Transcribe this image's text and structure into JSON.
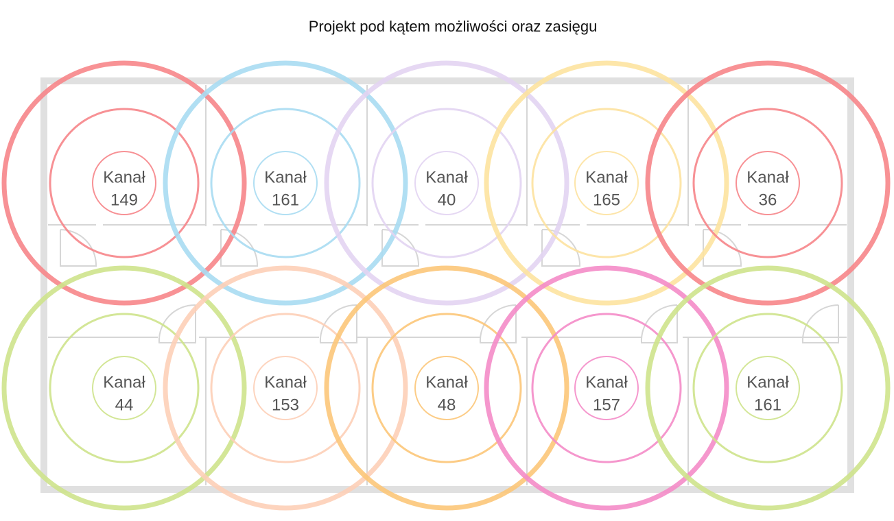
{
  "header": {
    "title": "Projekt pod kątem możliwości oraz zasięgu"
  },
  "nodes": [
    {
      "label": "Kanał",
      "channel": "149",
      "color": "#f7868a"
    },
    {
      "label": "Kanał",
      "channel": "161",
      "color": "#a9dcf2"
    },
    {
      "label": "Kanał",
      "channel": "40",
      "color": "#e3d4f2"
    },
    {
      "label": "Kanał",
      "channel": "165",
      "color": "#fde3a0"
    },
    {
      "label": "Kanał",
      "channel": "36",
      "color": "#f7868a"
    },
    {
      "label": "Kanał",
      "channel": "44",
      "color": "#cfe48c"
    },
    {
      "label": "Kanał",
      "channel": "153",
      "color": "#fdd0b8"
    },
    {
      "label": "Kanał",
      "channel": "48",
      "color": "#fcc77a"
    },
    {
      "label": "Kanał",
      "channel": "157",
      "color": "#f48cc8"
    },
    {
      "label": "Kanał",
      "channel": "161",
      "color": "#cfe48c"
    }
  ]
}
